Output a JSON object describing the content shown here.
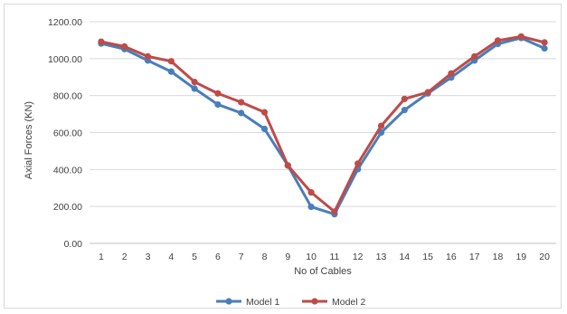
{
  "chart_data": {
    "type": "line",
    "title": "",
    "xlabel": "No of Cables",
    "ylabel": "Axial Forces (KN)",
    "categories": [
      "1",
      "2",
      "3",
      "4",
      "5",
      "6",
      "7",
      "8",
      "9",
      "10",
      "11",
      "12",
      "13",
      "14",
      "15",
      "16",
      "17",
      "18",
      "19",
      "20"
    ],
    "ylim": [
      0,
      1200
    ],
    "yticks": [
      "0.00",
      "200.00",
      "400.00",
      "600.00",
      "800.00",
      "1000.00",
      "1200.00"
    ],
    "grid": "horizontal",
    "legend_position": "bottom",
    "series": [
      {
        "name": "Model 1",
        "color": "#4a7ebb",
        "values": [
          1082,
          1052,
          990,
          930,
          838,
          752,
          706,
          620,
          422,
          198,
          158,
          402,
          600,
          722,
          812,
          898,
          990,
          1080,
          1112,
          1056
        ]
      },
      {
        "name": "Model 2",
        "color": "#be4b48",
        "values": [
          1092,
          1066,
          1012,
          986,
          874,
          812,
          764,
          710,
          422,
          276,
          172,
          432,
          636,
          782,
          818,
          920,
          1012,
          1098,
          1120,
          1088
        ]
      }
    ]
  }
}
